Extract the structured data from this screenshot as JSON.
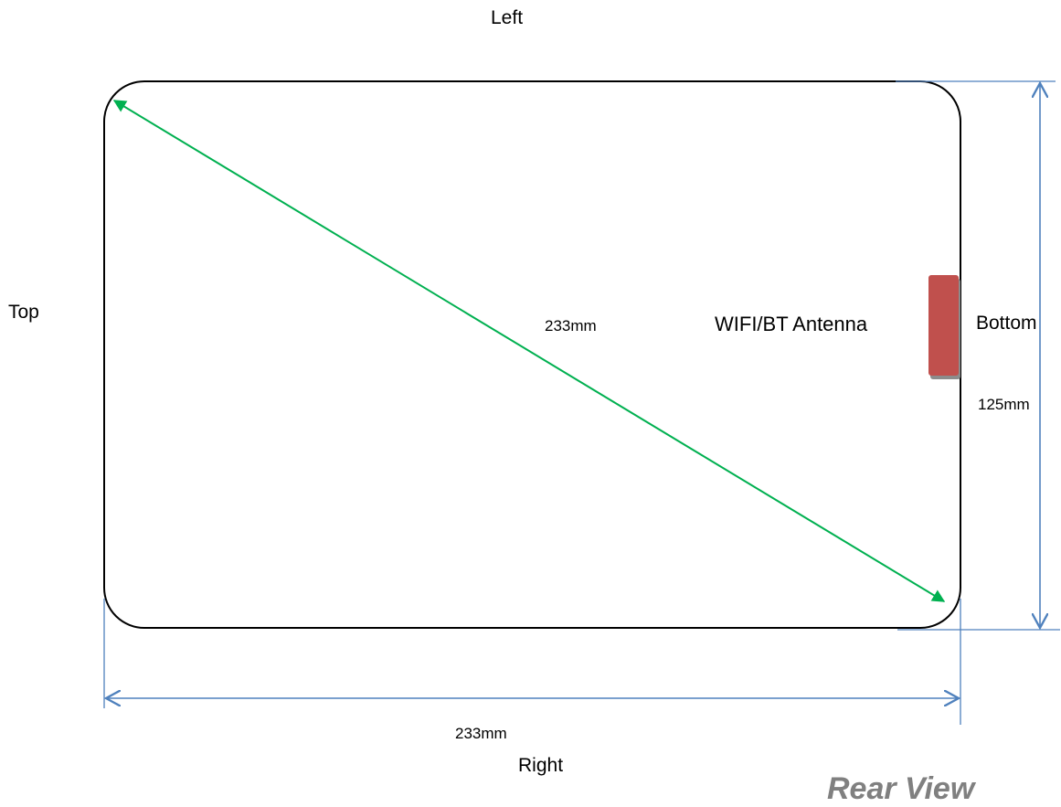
{
  "labels": {
    "left": "Left",
    "top": "Top",
    "bottom": "Bottom",
    "right": "Right"
  },
  "dimensions": {
    "diagonal": "233mm",
    "width": "233mm",
    "height": "125mm"
  },
  "antenna": {
    "label": "WIFI/BT Antenna",
    "color": "#c0504d"
  },
  "view_title": "Rear View",
  "colors": {
    "outline": "#000000",
    "diagonal_arrow": "#00b050",
    "dimension_lines": "#4f81bd",
    "view_title": "#808080"
  }
}
